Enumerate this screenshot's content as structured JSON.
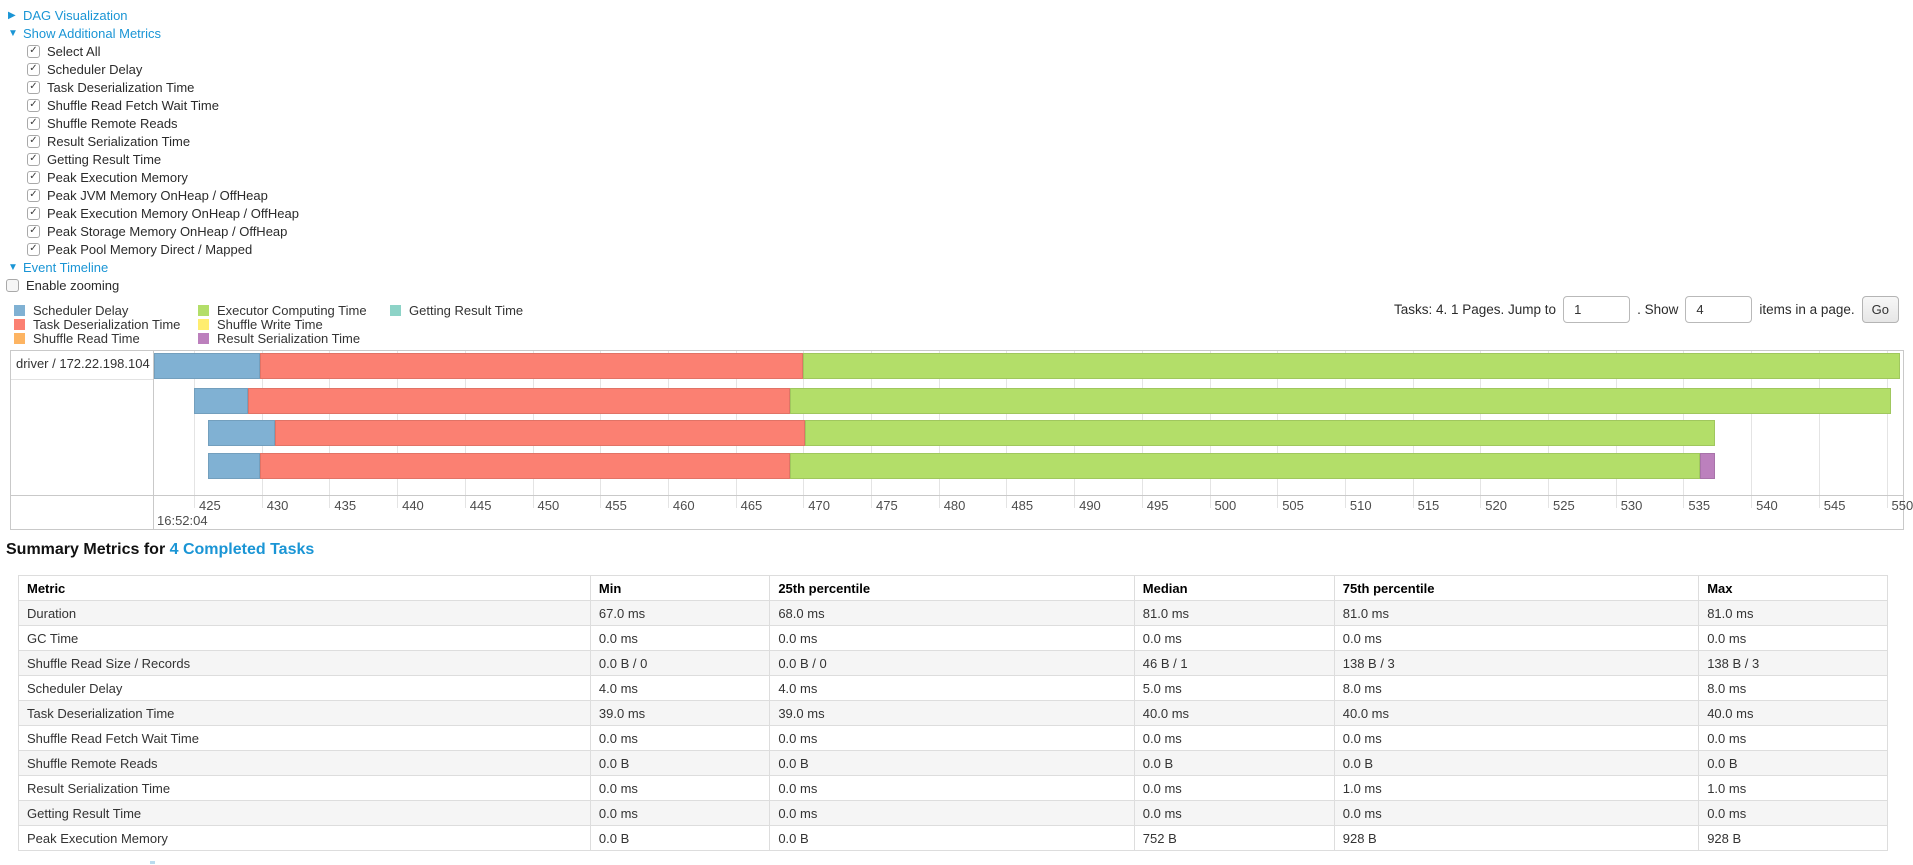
{
  "colors": {
    "link": "#1a95d5",
    "metric_colors": {
      "scheduler_delay": "#80B1D3",
      "task_deserialization": "#FB8072",
      "shuffle_read": "#FDB462",
      "executor_computing": "#B3DE69",
      "shuffle_write": "#FFED6F",
      "result_serialization": "#BC80BD",
      "getting_result": "#8DD3C7"
    }
  },
  "controls": {
    "dag_section": {
      "label": "DAG Visualization",
      "state": "collapsed",
      "arrow": "▶"
    },
    "metrics_section": {
      "label": "Show Additional Metrics",
      "state": "expanded",
      "arrow": "▼"
    },
    "metrics": [
      {
        "label": "Select All",
        "checked": true
      },
      {
        "label": "Scheduler Delay",
        "checked": true
      },
      {
        "label": "Task Deserialization Time",
        "checked": true
      },
      {
        "label": "Shuffle Read Fetch Wait Time",
        "checked": true
      },
      {
        "label": "Shuffle Remote Reads",
        "checked": true
      },
      {
        "label": "Result Serialization Time",
        "checked": true
      },
      {
        "label": "Getting Result Time",
        "checked": true
      },
      {
        "label": "Peak Execution Memory",
        "checked": true
      },
      {
        "label": "Peak JVM Memory OnHeap / OffHeap",
        "checked": true
      },
      {
        "label": "Peak Execution Memory OnHeap / OffHeap",
        "checked": true
      },
      {
        "label": "Peak Storage Memory OnHeap / OffHeap",
        "checked": true
      },
      {
        "label": "Peak Pool Memory Direct / Mapped",
        "checked": true
      }
    ],
    "event_timeline_section": {
      "label": "Event Timeline",
      "state": "expanded",
      "arrow": "▼"
    },
    "enable_zooming": {
      "label": "Enable zooming",
      "checked": false
    },
    "check_glyph": "✓"
  },
  "legend": {
    "columns": [
      {
        "items": [
          {
            "key": "scheduler_delay",
            "label": "Scheduler Delay"
          },
          {
            "key": "task_deserialization",
            "label": "Task Deserialization Time"
          },
          {
            "key": "shuffle_read",
            "label": "Shuffle Read Time"
          }
        ]
      },
      {
        "items": [
          {
            "key": "executor_computing",
            "label": "Executor Computing Time"
          },
          {
            "key": "shuffle_write",
            "label": "Shuffle Write Time"
          },
          {
            "key": "result_serialization",
            "label": "Result Serialization Time"
          }
        ]
      },
      {
        "items": [
          {
            "key": "getting_result",
            "label": "Getting Result Time"
          }
        ]
      }
    ]
  },
  "pagination": {
    "tasks_text": "Tasks: 4. 1 Pages. Jump to",
    "jump_value": "1",
    "show_text": ". Show",
    "show_value": "4",
    "items_text": "items in a page.",
    "go_label": "Go"
  },
  "chart_data": {
    "type": "horizontal-stacked-bar-timeline",
    "group_label": "driver / 172.22.198.104",
    "x_axis": {
      "unit": "ms within second",
      "origin_time_label": "16:52:04",
      "ticks": [
        425,
        430,
        435,
        440,
        445,
        450,
        455,
        460,
        465,
        470,
        475,
        480,
        485,
        490,
        495,
        500,
        505,
        510,
        515,
        520,
        525,
        530,
        535,
        540,
        545,
        550
      ],
      "domain": [
        422,
        551.2
      ],
      "grid": true
    },
    "tasks": [
      {
        "segments": [
          {
            "metric": "scheduler_delay",
            "start": 422.0,
            "end": 429.9
          },
          {
            "metric": "task_deserialization",
            "start": 429.9,
            "end": 470.0
          },
          {
            "metric": "executor_computing",
            "start": 470.0,
            "end": 551.0
          }
        ]
      },
      {
        "segments": [
          {
            "metric": "scheduler_delay",
            "start": 425.0,
            "end": 429.0
          },
          {
            "metric": "task_deserialization",
            "start": 429.0,
            "end": 469.0
          },
          {
            "metric": "executor_computing",
            "start": 469.0,
            "end": 550.3
          }
        ]
      },
      {
        "segments": [
          {
            "metric": "scheduler_delay",
            "start": 426.0,
            "end": 431.0
          },
          {
            "metric": "task_deserialization",
            "start": 431.0,
            "end": 470.1
          },
          {
            "metric": "executor_computing",
            "start": 470.1,
            "end": 537.3
          }
        ]
      },
      {
        "segments": [
          {
            "metric": "scheduler_delay",
            "start": 426.0,
            "end": 429.9
          },
          {
            "metric": "task_deserialization",
            "start": 429.9,
            "end": 469.0
          },
          {
            "metric": "executor_computing",
            "start": 469.0,
            "end": 536.2
          },
          {
            "metric": "result_serialization",
            "start": 536.2,
            "end": 537.3
          }
        ]
      }
    ]
  },
  "summary": {
    "title_prefix": "Summary Metrics for",
    "title_link": "4 Completed Tasks",
    "table": {
      "headers": [
        "Metric",
        "Min",
        "25th percentile",
        "Median",
        "75th percentile",
        "Max"
      ],
      "rows": [
        {
          "cells": [
            "Duration",
            "67.0 ms",
            "68.0 ms",
            "81.0 ms",
            "81.0 ms",
            "81.0 ms"
          ]
        },
        {
          "cells": [
            "GC Time",
            "0.0 ms",
            "0.0 ms",
            "0.0 ms",
            "0.0 ms",
            "0.0 ms"
          ]
        },
        {
          "cells": [
            "Shuffle Read Size / Records",
            "0.0 B / 0",
            "0.0 B / 0",
            "46 B / 1",
            "138 B / 3",
            "138 B / 3"
          ]
        },
        {
          "cells": [
            "Scheduler Delay",
            "4.0 ms",
            "4.0 ms",
            "5.0 ms",
            "8.0 ms",
            "8.0 ms"
          ]
        },
        {
          "cells": [
            "Task Deserialization Time",
            "39.0 ms",
            "39.0 ms",
            "40.0 ms",
            "40.0 ms",
            "40.0 ms"
          ]
        },
        {
          "cells": [
            "Shuffle Read Fetch Wait Time",
            "0.0 ms",
            "0.0 ms",
            "0.0 ms",
            "0.0 ms",
            "0.0 ms"
          ]
        },
        {
          "cells": [
            "Shuffle Remote Reads",
            "0.0 B",
            "0.0 B",
            "0.0 B",
            "0.0 B",
            "0.0 B"
          ]
        },
        {
          "cells": [
            "Result Serialization Time",
            "0.0 ms",
            "0.0 ms",
            "0.0 ms",
            "1.0 ms",
            "1.0 ms"
          ]
        },
        {
          "cells": [
            "Getting Result Time",
            "0.0 ms",
            "0.0 ms",
            "0.0 ms",
            "0.0 ms",
            "0.0 ms"
          ]
        },
        {
          "cells": [
            "Peak Execution Memory",
            "0.0 B",
            "0.0 B",
            "752 B",
            "928 B",
            "928 B"
          ]
        }
      ]
    }
  }
}
